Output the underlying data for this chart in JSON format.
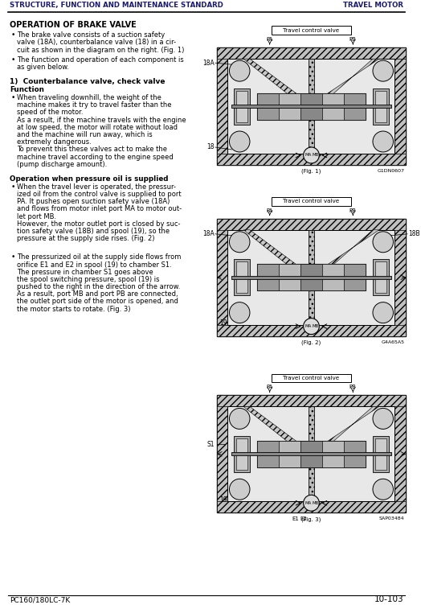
{
  "header_left": "STRUCTURE, FUNCTION AND MAINTENANCE STANDARD",
  "header_right": "TRAVEL MOTOR",
  "footer_left": "PC160/180LC-7K",
  "footer_right": "10-103",
  "title": "OPERATION OF BRAKE VALVE",
  "bullet1_lines": [
    "The brake valve consists of a suction safety",
    "valve (18A), counterbalance valve (18) in a cir-",
    "cuit as shown in the diagram on the right. (Fig. 1)"
  ],
  "bullet2_lines": [
    "The function and operation of each component is",
    "as given below."
  ],
  "section1_title": "1)  Counterbalance valve, check valve",
  "section1_sub": "Function",
  "section1_bullet_lines": [
    "When traveling downhill, the weight of the",
    "machine makes it try to travel faster than the",
    "speed of the motor.",
    "As a result, if the machine travels with the engine",
    "at low speed, the motor will rotate without load",
    "and the machine will run away, which is",
    "extremely dangerous.",
    "To prevent this these valves act to make the",
    "machine travel according to the engine speed",
    "(pump discharge amount)."
  ],
  "section2_title": "Operation when pressure oil is supplied",
  "section2_bullet_lines": [
    "When the travel lever is operated, the pressur-",
    "ized oil from the control valve is supplied to port",
    "PA. It pushes open suction safety valve (18A)",
    "and flows from motor inlet port MA to motor out-",
    "let port MB.",
    "However, the motor outlet port is closed by suc-",
    "tion safety valve (18B) and spool (19), so the",
    "pressure at the supply side rises. (Fig. 2)"
  ],
  "section3_bullet_lines": [
    "The pressurized oil at the supply side flows from",
    "orifice E1 and E2 in spool (19) to chamber S1.",
    "The pressure in chamber S1 goes above",
    "the spool switching pressure, spool (19) is",
    "pushed to the right in the direction of the arrow.",
    "As a result, port MB and port PB are connected,",
    "the outlet port side of the motor is opened, and",
    "the motor starts to rotate. (Fig. 3)"
  ],
  "bg_color": "#ffffff",
  "text_color": "#000000",
  "header_color": "#1a1a6e"
}
